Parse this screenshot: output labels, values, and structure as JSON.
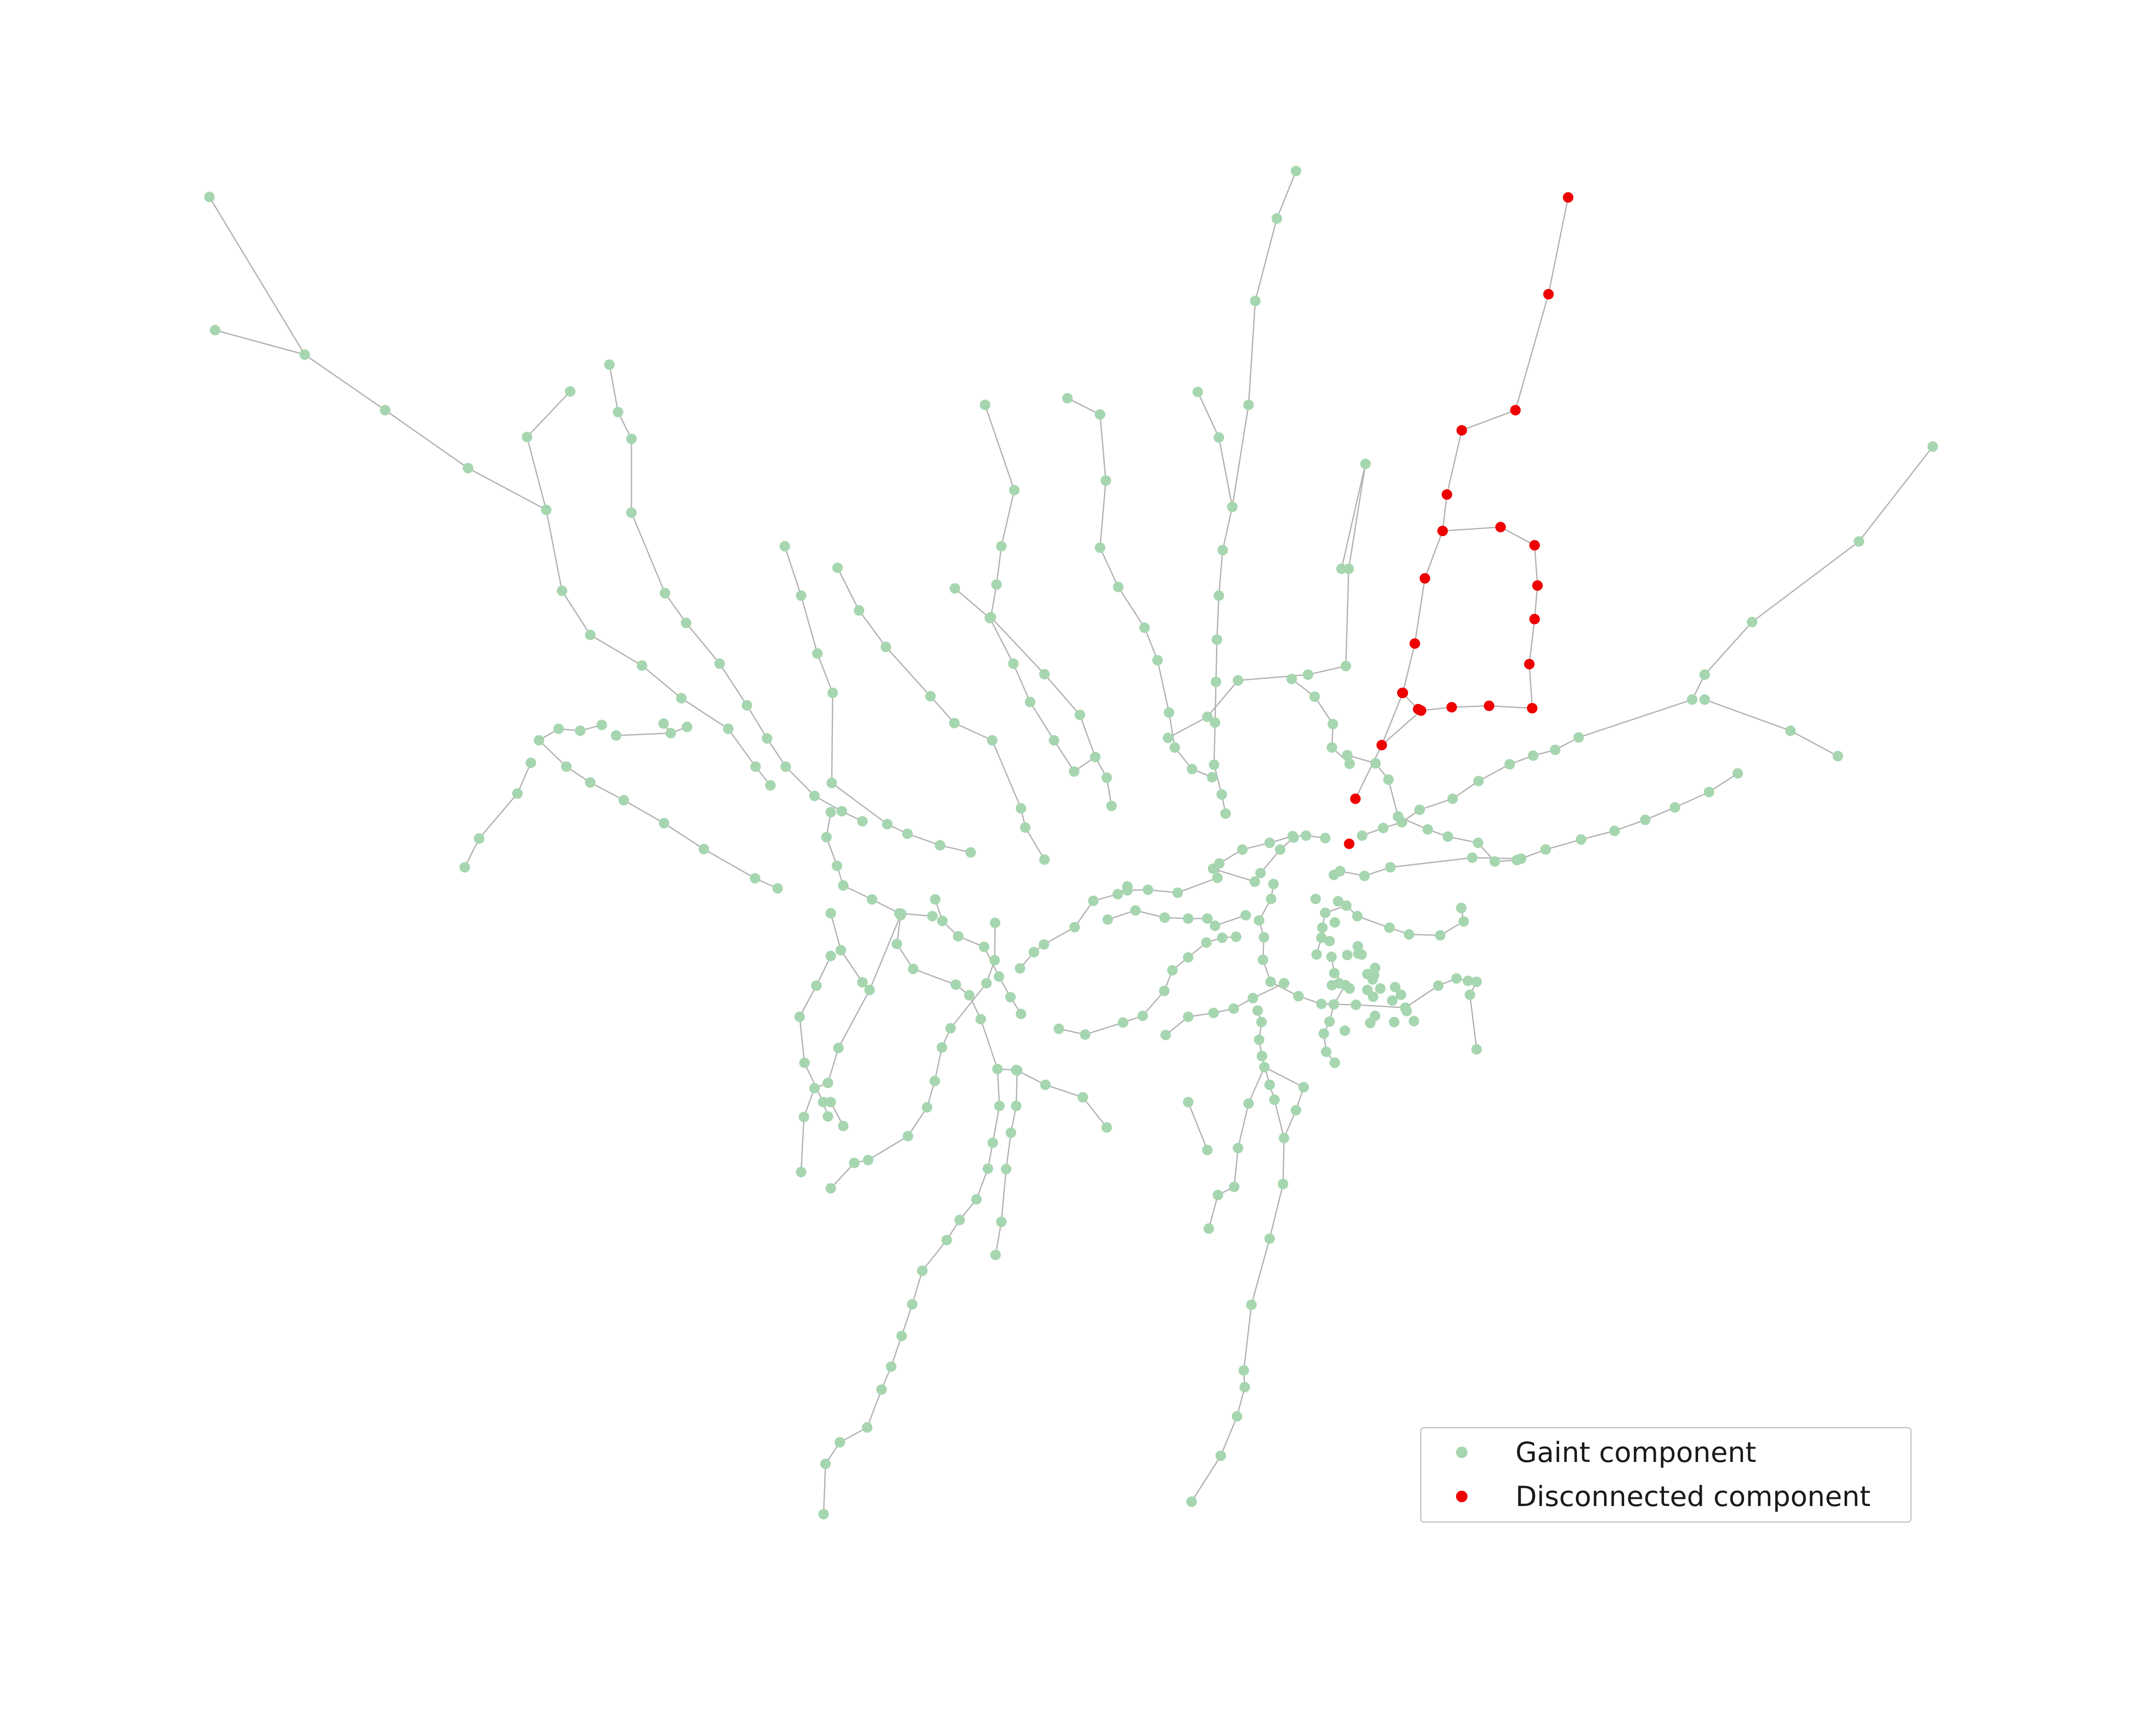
{
  "figure": {
    "colors": {
      "giant": "#a6d6b0",
      "disconnected": "#ee0000",
      "edge": "#b0b0b0"
    }
  },
  "legend": {
    "giant_label": "Gaint component",
    "disconnected_label": "Disconnected component"
  }
}
